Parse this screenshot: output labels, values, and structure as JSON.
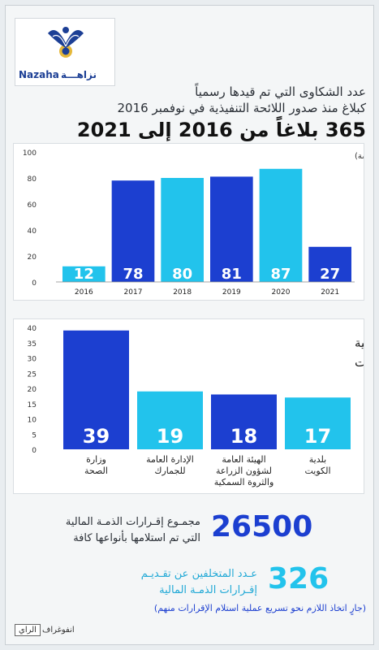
{
  "brand": {
    "name_ar": "نزاهـــة",
    "name_en": "Nazaha",
    "colors": {
      "blue": "#1c3fd0",
      "cyan": "#22c3ec",
      "gold": "#e5b83a"
    }
  },
  "header": {
    "line1": "عدد الشكاوى التي تم قيدها رسمياً",
    "line2": "كبلاغ منذ صدور اللائحة التنفيذية في نوفمبر 2016",
    "headline": "365 بلاغاً من 2016 إلى 2021"
  },
  "chart_data": [
    {
      "type": "bar",
      "title": "",
      "annotation": "(بعضها أُحيل للنيابة العام وبعضها قيد الدراسة)",
      "categories": [
        "2016",
        "2017",
        "2018",
        "2019",
        "2020",
        "2021"
      ],
      "values": [
        12,
        78,
        80,
        81,
        87,
        27
      ],
      "bar_colors": [
        "#22c3ec",
        "#1c3fd0",
        "#22c3ec",
        "#1c3fd0",
        "#22c3ec",
        "#1c3fd0"
      ],
      "yticks": [
        0,
        20,
        40,
        60,
        80,
        100
      ],
      "ylim": [
        0,
        100
      ],
      "grid": false
    },
    {
      "type": "bar",
      "title_line1": "أكثر الجهات الحكومية",
      "title_line2": "المُقدّم بحقها بلاغات",
      "categories": [
        [
          "وزارة",
          "الصحة"
        ],
        [
          "الإدارة العامة",
          "للجمارك"
        ],
        [
          "الهيئة العامة",
          "لشؤون الزراعة",
          "والثروة السمكية"
        ],
        [
          "بلدية",
          "الكويت"
        ]
      ],
      "values": [
        39,
        19,
        18,
        17
      ],
      "bar_colors": [
        "#1c3fd0",
        "#22c3ec",
        "#1c3fd0",
        "#22c3ec"
      ],
      "yticks": [
        0,
        5,
        10,
        15,
        20,
        25,
        30,
        35,
        40
      ],
      "ylim": [
        0,
        40
      ],
      "grid": false
    }
  ],
  "stats": [
    {
      "value": "26500",
      "label_line1": "مجمـوع إقـرارات الذمـة المالية",
      "label_line2": "التي تم استلامها بأنواعها كافة"
    },
    {
      "value": "326",
      "label_line1": "عـدد المتخلفين عن تقـديـم",
      "label_line2": "إقـرارات الذمـة المالية"
    }
  ],
  "note": "(جارٍ اتخاذ اللازم نحو تسريع عملية استلام الإقرارات منهم)",
  "credit": {
    "logo": "الراي",
    "label": "انفوغراف"
  }
}
